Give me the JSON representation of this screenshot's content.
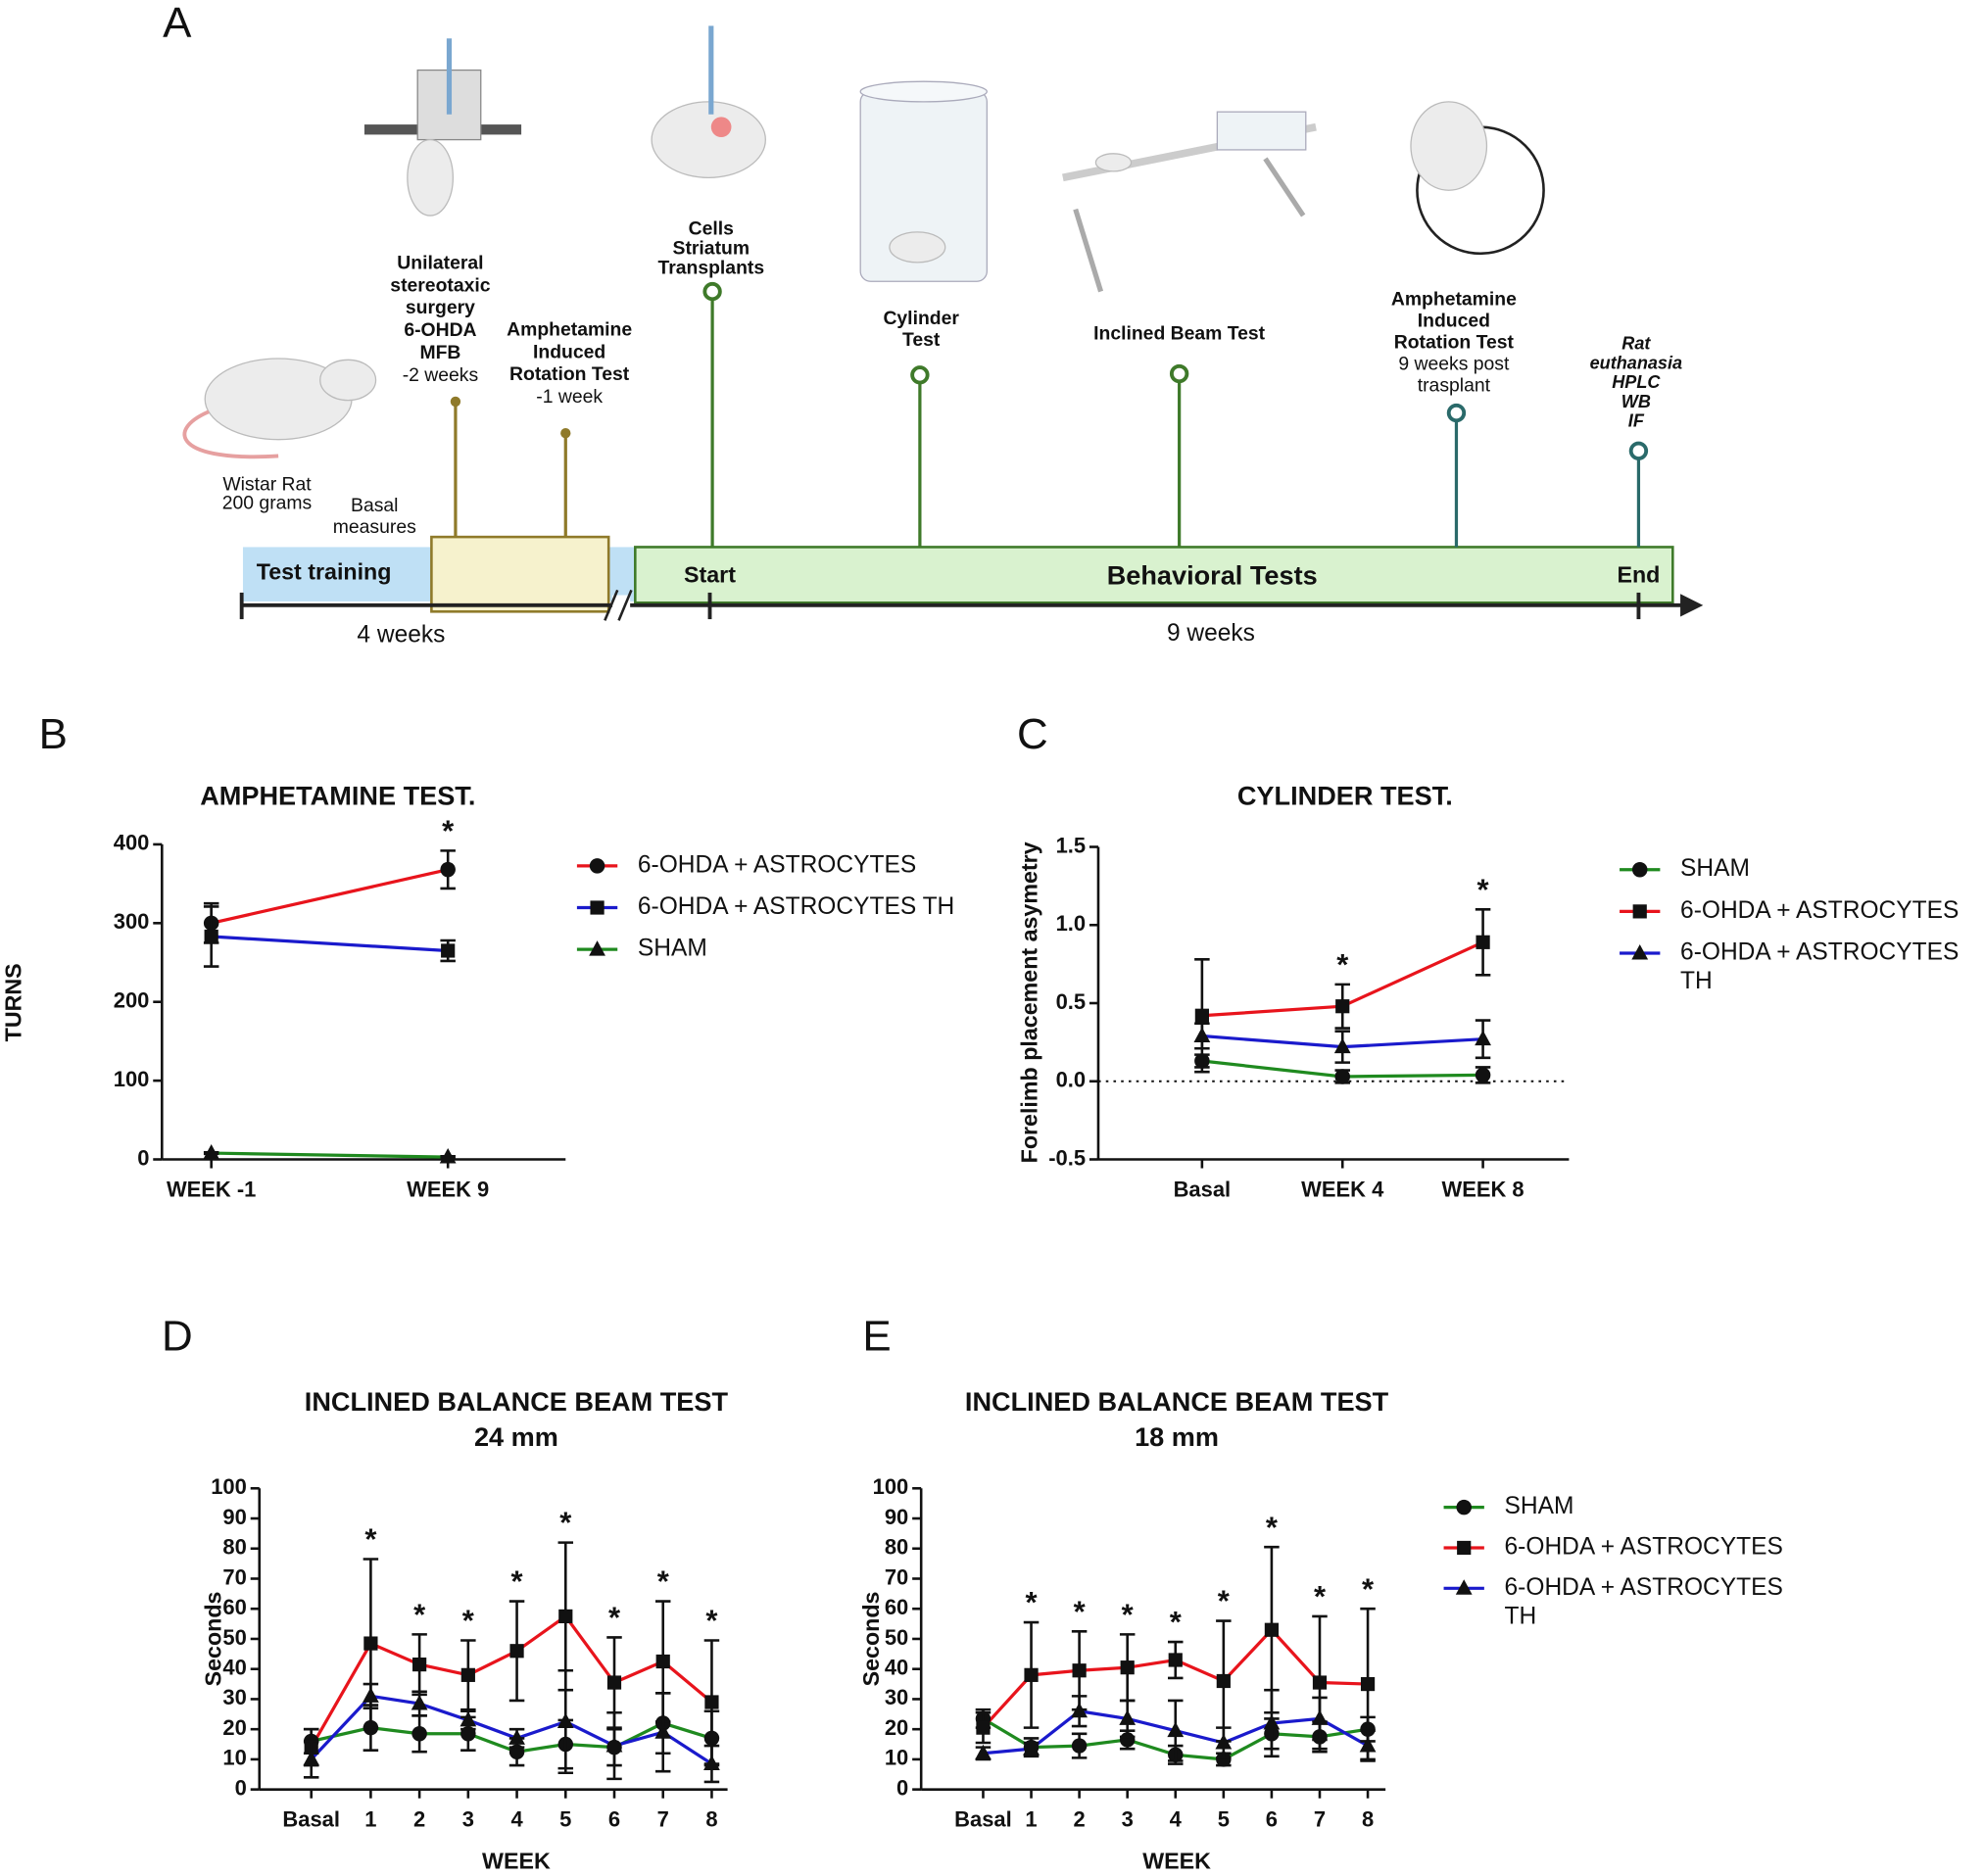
{
  "timeline": {
    "panel": "A",
    "rat": [
      "Wistar Rat",
      "200 grams"
    ],
    "basal": [
      "Basal",
      "measures"
    ],
    "surgery": {
      "lines": [
        "Unilateral",
        "stereotaxic",
        "surgery",
        "6-OHDA",
        "MFB"
      ],
      "time": "-2 weeks"
    },
    "rotation_pre": {
      "lines": [
        "Amphetamine",
        "Induced",
        "Rotation Test"
      ],
      "time": "-1 week"
    },
    "transplant": [
      "Cells",
      "Striatum",
      "Transplants"
    ],
    "cylinder": [
      "Cylinder",
      "Test"
    ],
    "beam": "Inclined Beam Test",
    "rotation_post": {
      "lines": [
        "Amphetamine",
        "Induced",
        "Rotation Test"
      ],
      "time": [
        "9 weeks post",
        "trasplant"
      ]
    },
    "end_event": [
      "Rat",
      "euthanasia",
      "HPLC",
      "WB",
      "IF"
    ],
    "phases": {
      "training": "Test training",
      "start": "Start",
      "behavioral": "Behavioral Tests",
      "end": "End"
    },
    "durations": [
      "4 weeks",
      "9 weeks"
    ]
  },
  "chart_data": [
    {
      "type": "line",
      "panel": "B",
      "title": "AMPHETAMINE TEST.",
      "ylabel": "TURNS",
      "categories": [
        "WEEK -1",
        "WEEK 9"
      ],
      "ylim": [
        0,
        400
      ],
      "yticks": [
        0,
        100,
        200,
        300,
        400
      ],
      "significance": [
        null,
        "*"
      ],
      "series": [
        {
          "name": "6-OHDA + ASTROCYTES",
          "color": "#e8141c",
          "marker": "circle",
          "values": [
            300,
            368
          ],
          "errors": [
            25,
            24
          ]
        },
        {
          "name": "6-OHDA + ASTROCYTES TH",
          "color": "#1a1acc",
          "marker": "square",
          "values": [
            283,
            265
          ],
          "errors": [
            38,
            13
          ]
        },
        {
          "name": "SHAM",
          "color": "#1f8a1f",
          "marker": "triangle",
          "values": [
            8,
            3
          ],
          "errors": [
            1,
            1
          ]
        }
      ]
    },
    {
      "type": "line",
      "panel": "C",
      "title": "CYLINDER TEST.",
      "ylabel": "Forelimb placement asymetry",
      "categories": [
        "Basal",
        "WEEK 4",
        "WEEK 8"
      ],
      "ylim": [
        -0.5,
        1.5
      ],
      "yticks": [
        -0.5,
        {
          "value": 0,
          "label": "0.0"
        },
        0.5,
        {
          "value": 1,
          "label": "1.0"
        },
        1.5
      ],
      "zero_line": true,
      "significance": [
        null,
        "*",
        "*"
      ],
      "series": [
        {
          "name": "SHAM",
          "color": "#1f8a1f",
          "marker": "circle",
          "values": [
            0.13,
            0.03,
            0.04
          ],
          "errors": [
            0.04,
            0.04,
            0.05
          ]
        },
        {
          "name": "6-OHDA + ASTROCYTES",
          "color": "#e8141c",
          "marker": "square",
          "values": [
            0.42,
            0.48,
            0.89
          ],
          "errors": [
            0.36,
            0.14,
            0.21
          ]
        },
        {
          "name": "6-OHDA + ASTROCYTES TH",
          "color": "#1a1acc",
          "marker": "triangle",
          "values": [
            0.29,
            0.22,
            0.27
          ],
          "errors": [
            0.08,
            0.1,
            0.12
          ]
        }
      ]
    },
    {
      "type": "line",
      "panel": "D",
      "title": "INCLINED BALANCE BEAM TEST",
      "subtitle": "24 mm",
      "ylabel": "Seconds",
      "xlabel": "WEEK",
      "categories": [
        "Basal",
        "1",
        "2",
        "3",
        "4",
        "5",
        "6",
        "7",
        "8"
      ],
      "ylim": [
        0,
        100
      ],
      "yticks": [
        0,
        10,
        20,
        30,
        40,
        50,
        60,
        70,
        80,
        90,
        100
      ],
      "significance": [
        null,
        "*",
        "*",
        "*",
        "*",
        "*",
        "*",
        "*",
        "*"
      ],
      "series": [
        {
          "color": "#1f8a1f",
          "marker": "circle",
          "values": [
            16,
            20.5,
            18.5,
            18.5,
            12.5,
            15,
            14,
            22,
            17
          ],
          "errors": [
            4,
            7.5,
            6,
            5.5,
            4.5,
            8,
            6,
            10,
            9
          ]
        },
        {
          "color": "#e8141c",
          "marker": "square",
          "values": [
            14,
            48.5,
            41.5,
            38,
            46,
            57.5,
            35.5,
            42.5,
            29
          ],
          "errors": [
            6,
            28,
            10,
            11.5,
            16.5,
            24.5,
            15,
            20,
            20.5
          ]
        },
        {
          "color": "#1a1acc",
          "marker": "triangle",
          "values": [
            10,
            31,
            28.5,
            23,
            17,
            22.5,
            14.5,
            19,
            8.5
          ],
          "errors": [
            6,
            4,
            4,
            3,
            3,
            17,
            11,
            13,
            6
          ]
        }
      ]
    },
    {
      "type": "line",
      "panel": "E",
      "title": "INCLINED BALANCE BEAM TEST",
      "subtitle": "18 mm",
      "ylabel": "Seconds",
      "xlabel": "WEEK",
      "categories": [
        "Basal",
        "1",
        "2",
        "3",
        "4",
        "5",
        "6",
        "7",
        "8"
      ],
      "ylim": [
        0,
        100
      ],
      "yticks": [
        0,
        10,
        20,
        30,
        40,
        50,
        60,
        70,
        80,
        90,
        100
      ],
      "significance": [
        null,
        "*",
        "*",
        "*",
        "*",
        "*",
        "*",
        "*",
        "*"
      ],
      "series": [
        {
          "name": "SHAM",
          "color": "#1f8a1f",
          "marker": "circle",
          "values": [
            23.5,
            14,
            14.5,
            16.5,
            11.5,
            10,
            18.5,
            17.5,
            20
          ],
          "errors": [
            3,
            3,
            4,
            3,
            3,
            2,
            5,
            5,
            4
          ]
        },
        {
          "name": "6-OHDA + ASTROCYTES",
          "color": "#e8141c",
          "marker": "square",
          "values": [
            20.5,
            38,
            39.5,
            40.5,
            43,
            36,
            53,
            35.5,
            35
          ],
          "errors": [
            5,
            17.5,
            13,
            11,
            6,
            20,
            27.5,
            22,
            25
          ]
        },
        {
          "name": "6-OHDA + ASTROCYTES TH",
          "color": "#1a1acc",
          "marker": "triangle",
          "values": [
            12,
            13.5,
            26,
            23.5,
            19.5,
            15.5,
            22,
            23.5,
            14.5
          ],
          "errors": [
            2,
            2,
            5,
            6,
            10,
            5,
            11,
            7,
            5
          ]
        }
      ]
    }
  ]
}
